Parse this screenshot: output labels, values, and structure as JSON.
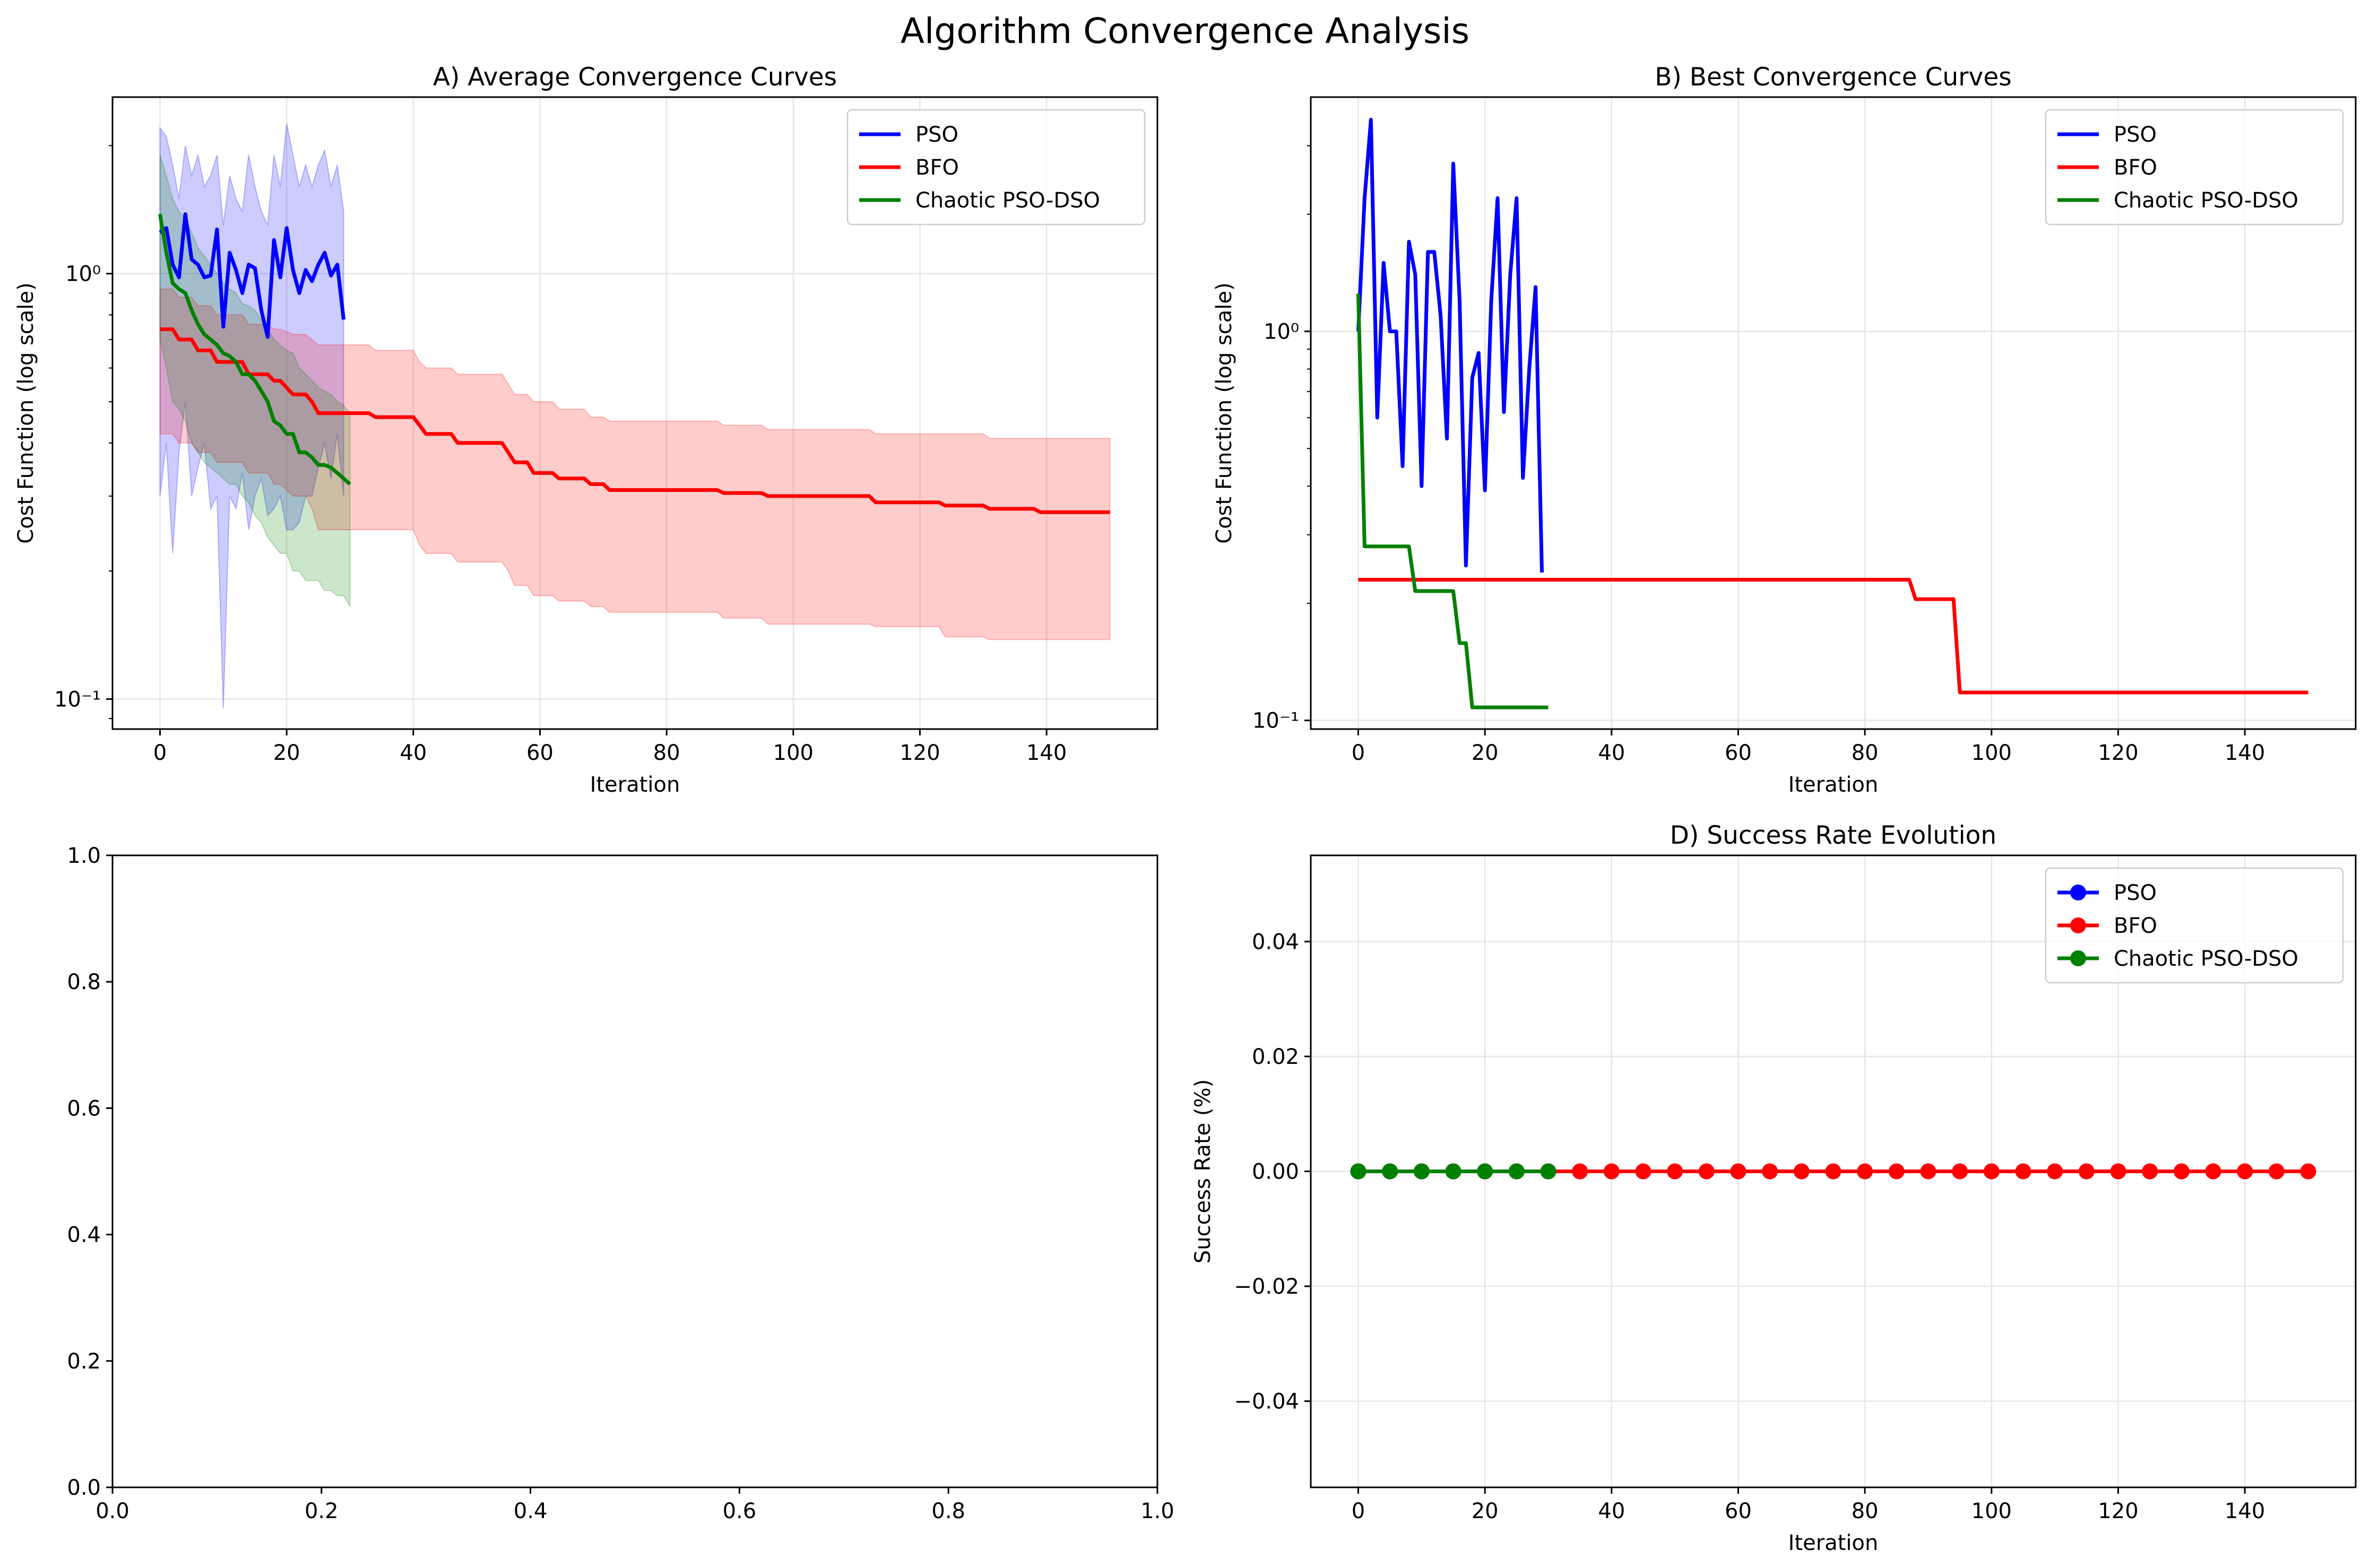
{
  "figure": {
    "title": "Algorithm Convergence Analysis"
  },
  "colors": {
    "PSO": "#0000ff",
    "BFO": "#ff0000",
    "Chaotic PSO-DSO": "#008000",
    "grid": "#e6e6e6"
  },
  "chart_data": [
    {
      "panel": "A",
      "type": "line",
      "title": "A) Average Convergence Curves",
      "xlabel": "Iteration",
      "ylabel": "Cost Function (log scale)",
      "yscale": "log",
      "xlim": [
        -7.5,
        157.5
      ],
      "ylim": [
        0.085,
        2.6
      ],
      "xticks": [
        0,
        20,
        40,
        60,
        80,
        100,
        120,
        140
      ],
      "yticks": [
        0.1,
        1
      ],
      "ytick_labels": [
        "10⁻¹",
        "10⁰"
      ],
      "grid": true,
      "legend": "top-right",
      "series": [
        {
          "name": "PSO",
          "color": "#0000ff",
          "x": [
            0,
            1,
            2,
            3,
            4,
            5,
            6,
            7,
            8,
            9,
            10,
            11,
            12,
            13,
            14,
            15,
            16,
            17,
            18,
            19,
            20,
            21,
            22,
            23,
            24,
            25,
            26,
            27,
            28,
            29
          ],
          "values": [
            1.25,
            1.28,
            1.05,
            0.98,
            1.38,
            1.08,
            1.05,
            0.98,
            0.99,
            1.27,
            0.75,
            1.12,
            1.02,
            0.9,
            1.05,
            1.03,
            0.82,
            0.71,
            1.2,
            0.98,
            1.28,
            1.02,
            0.9,
            1.02,
            0.96,
            1.05,
            1.12,
            0.99,
            1.05,
            0.78
          ],
          "lower": [
            0.3,
            0.4,
            0.22,
            0.38,
            0.5,
            0.3,
            0.35,
            0.4,
            0.28,
            0.3,
            0.095,
            0.3,
            0.28,
            0.34,
            0.25,
            0.3,
            0.33,
            0.27,
            0.28,
            0.3,
            0.25,
            0.25,
            0.26,
            0.3,
            0.3,
            0.35,
            0.4,
            0.33,
            0.42,
            0.3
          ],
          "upper": [
            2.2,
            2.1,
            1.8,
            1.5,
            2.0,
            1.7,
            1.9,
            1.6,
            1.7,
            1.9,
            1.3,
            1.7,
            1.5,
            1.4,
            1.9,
            1.6,
            1.4,
            1.3,
            1.9,
            1.6,
            2.25,
            1.9,
            1.6,
            1.8,
            1.6,
            1.8,
            1.95,
            1.6,
            1.8,
            1.4
          ]
        },
        {
          "name": "BFO",
          "color": "#ff0000",
          "x": [
            0,
            2,
            3,
            5,
            6,
            8,
            9,
            13,
            14,
            17,
            18,
            19,
            21,
            23,
            24,
            25,
            33,
            34,
            40,
            41,
            42,
            46,
            47,
            54,
            55,
            56,
            58,
            59,
            62,
            63,
            67,
            68,
            70,
            71,
            88,
            89,
            95,
            96,
            112,
            113,
            123,
            124,
            130,
            131,
            138,
            139,
            150
          ],
          "values": [
            0.74,
            0.74,
            0.7,
            0.7,
            0.66,
            0.66,
            0.62,
            0.62,
            0.58,
            0.58,
            0.56,
            0.56,
            0.52,
            0.52,
            0.5,
            0.47,
            0.47,
            0.46,
            0.46,
            0.44,
            0.42,
            0.42,
            0.4,
            0.4,
            0.38,
            0.36,
            0.36,
            0.34,
            0.34,
            0.33,
            0.33,
            0.32,
            0.32,
            0.31,
            0.31,
            0.305,
            0.305,
            0.3,
            0.3,
            0.29,
            0.29,
            0.285,
            0.285,
            0.28,
            0.28,
            0.275,
            0.275
          ],
          "lower": [
            0.42,
            0.42,
            0.4,
            0.4,
            0.38,
            0.38,
            0.36,
            0.36,
            0.34,
            0.34,
            0.32,
            0.32,
            0.3,
            0.3,
            0.28,
            0.25,
            0.25,
            0.25,
            0.25,
            0.23,
            0.22,
            0.22,
            0.21,
            0.21,
            0.2,
            0.185,
            0.185,
            0.175,
            0.175,
            0.17,
            0.17,
            0.165,
            0.165,
            0.16,
            0.16,
            0.155,
            0.155,
            0.15,
            0.15,
            0.148,
            0.148,
            0.14,
            0.14,
            0.138,
            0.138,
            0.138,
            0.138
          ],
          "upper": [
            0.92,
            0.92,
            0.88,
            0.88,
            0.84,
            0.84,
            0.8,
            0.8,
            0.76,
            0.76,
            0.74,
            0.74,
            0.72,
            0.72,
            0.7,
            0.68,
            0.68,
            0.66,
            0.66,
            0.62,
            0.6,
            0.6,
            0.58,
            0.58,
            0.55,
            0.52,
            0.52,
            0.5,
            0.5,
            0.48,
            0.48,
            0.46,
            0.46,
            0.45,
            0.45,
            0.44,
            0.44,
            0.43,
            0.43,
            0.42,
            0.42,
            0.42,
            0.42,
            0.41,
            0.41,
            0.41,
            0.41
          ]
        },
        {
          "name": "Chaotic PSO-DSO",
          "color": "#008000",
          "x": [
            0,
            1,
            2,
            3,
            4,
            5,
            6,
            7,
            8,
            9,
            10,
            11,
            12,
            13,
            14,
            15,
            16,
            17,
            18,
            19,
            20,
            21,
            22,
            23,
            24,
            25,
            26,
            27,
            28,
            29,
            30
          ],
          "values": [
            1.38,
            1.12,
            0.95,
            0.92,
            0.9,
            0.82,
            0.76,
            0.72,
            0.7,
            0.68,
            0.65,
            0.64,
            0.62,
            0.58,
            0.58,
            0.56,
            0.53,
            0.5,
            0.45,
            0.44,
            0.42,
            0.42,
            0.38,
            0.38,
            0.37,
            0.355,
            0.355,
            0.35,
            0.34,
            0.33,
            0.32
          ],
          "lower": [
            0.7,
            0.6,
            0.5,
            0.48,
            0.45,
            0.4,
            0.38,
            0.36,
            0.35,
            0.34,
            0.33,
            0.32,
            0.32,
            0.3,
            0.29,
            0.27,
            0.26,
            0.24,
            0.23,
            0.22,
            0.22,
            0.2,
            0.2,
            0.19,
            0.19,
            0.19,
            0.18,
            0.18,
            0.175,
            0.175,
            0.165
          ],
          "upper": [
            1.9,
            1.7,
            1.5,
            1.4,
            1.35,
            1.25,
            1.15,
            1.1,
            1.05,
            1.0,
            0.95,
            0.92,
            0.9,
            0.85,
            0.84,
            0.82,
            0.78,
            0.74,
            0.7,
            0.68,
            0.66,
            0.65,
            0.6,
            0.58,
            0.56,
            0.54,
            0.53,
            0.52,
            0.5,
            0.49,
            0.47
          ]
        }
      ]
    },
    {
      "panel": "B",
      "type": "line",
      "title": "B) Best Convergence Curves",
      "xlabel": "Iteration",
      "ylabel": "Cost Function (log scale)",
      "yscale": "log",
      "xlim": [
        -7.5,
        157.5
      ],
      "ylim": [
        0.095,
        4.0
      ],
      "xticks": [
        0,
        20,
        40,
        60,
        80,
        100,
        120,
        140
      ],
      "yticks": [
        0.1,
        1
      ],
      "ytick_labels": [
        "10⁻¹",
        "10⁰"
      ],
      "grid": true,
      "legend": "top-right",
      "series": [
        {
          "name": "PSO",
          "color": "#0000ff",
          "x": [
            0,
            1,
            2,
            3,
            4,
            5,
            6,
            7,
            8,
            9,
            10,
            11,
            12,
            13,
            14,
            15,
            16,
            17,
            18,
            19,
            20,
            21,
            22,
            23,
            24,
            25,
            26,
            27,
            28,
            29
          ],
          "values": [
            1.0,
            2.2,
            3.5,
            0.6,
            1.5,
            1.0,
            1.0,
            0.45,
            1.7,
            1.4,
            0.4,
            1.6,
            1.6,
            1.1,
            0.53,
            2.7,
            1.2,
            0.25,
            0.76,
            0.88,
            0.39,
            1.2,
            2.2,
            0.62,
            1.4,
            2.2,
            0.42,
            0.8,
            1.3,
            0.24
          ]
        },
        {
          "name": "BFO",
          "color": "#ff0000",
          "x": [
            0,
            87,
            88,
            94,
            95,
            150
          ],
          "values": [
            0.23,
            0.23,
            0.205,
            0.205,
            0.118,
            0.118
          ]
        },
        {
          "name": "Chaotic PSO-DSO",
          "color": "#008000",
          "x": [
            0,
            1,
            8,
            9,
            15,
            16,
            17,
            18,
            30
          ],
          "values": [
            1.25,
            0.28,
            0.28,
            0.215,
            0.215,
            0.158,
            0.158,
            0.108,
            0.108
          ]
        }
      ]
    },
    {
      "panel": "C",
      "type": "line",
      "title": "",
      "xlim": [
        0,
        1
      ],
      "ylim": [
        0,
        1
      ],
      "xticks": [
        0.0,
        0.2,
        0.4,
        0.6,
        0.8,
        1.0
      ],
      "yticks": [
        0.0,
        0.2,
        0.4,
        0.6,
        0.8,
        1.0
      ],
      "grid": false,
      "series": []
    },
    {
      "panel": "D",
      "type": "line",
      "title": "D) Success Rate Evolution",
      "xlabel": "Iteration",
      "ylabel": "Success Rate (%)",
      "yscale": "linear",
      "xlim": [
        -7.5,
        157.5
      ],
      "ylim": [
        -0.055,
        0.055
      ],
      "xticks": [
        0,
        20,
        40,
        60,
        80,
        100,
        120,
        140
      ],
      "yticks": [
        -0.04,
        -0.02,
        0.0,
        0.02,
        0.04
      ],
      "ytick_labels": [
        "−0.04",
        "−0.02",
        "0.00",
        "0.02",
        "0.04"
      ],
      "grid": true,
      "legend": "top-right",
      "markers": true,
      "series": [
        {
          "name": "PSO",
          "color": "#0000ff",
          "x": [
            0,
            5,
            10,
            15,
            20,
            25
          ],
          "values": [
            0,
            0,
            0,
            0,
            0,
            0
          ]
        },
        {
          "name": "BFO",
          "color": "#ff0000",
          "x": [
            0,
            5,
            10,
            15,
            20,
            25,
            30,
            35,
            40,
            45,
            50,
            55,
            60,
            65,
            70,
            75,
            80,
            85,
            90,
            95,
            100,
            105,
            110,
            115,
            120,
            125,
            130,
            135,
            140,
            145,
            150
          ],
          "values": [
            0,
            0,
            0,
            0,
            0,
            0,
            0,
            0,
            0,
            0,
            0,
            0,
            0,
            0,
            0,
            0,
            0,
            0,
            0,
            0,
            0,
            0,
            0,
            0,
            0,
            0,
            0,
            0,
            0,
            0,
            0
          ]
        },
        {
          "name": "Chaotic PSO-DSO",
          "color": "#008000",
          "x": [
            0,
            5,
            10,
            15,
            20,
            25,
            30
          ],
          "values": [
            0,
            0,
            0,
            0,
            0,
            0,
            0
          ]
        }
      ]
    }
  ]
}
